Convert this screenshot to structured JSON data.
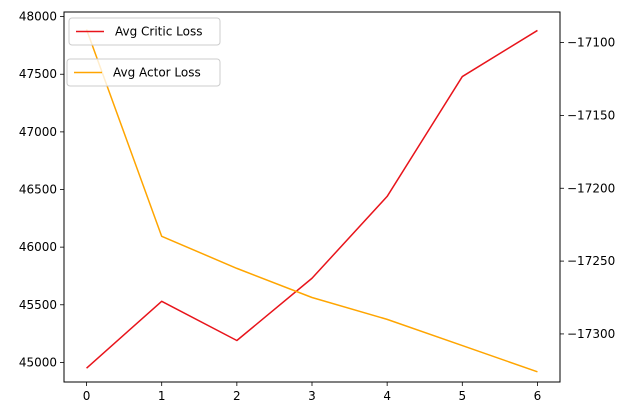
{
  "chart_data": {
    "type": "line",
    "title": "",
    "xlabel": "",
    "ylabel_left": "",
    "ylabel_right": "",
    "x": [
      0,
      1,
      2,
      3,
      4,
      5,
      6
    ],
    "x_ticks": [
      0,
      1,
      2,
      3,
      4,
      5,
      6
    ],
    "x_tick_labels": [
      "0",
      "1",
      "2",
      "3",
      "4",
      "5",
      "6"
    ],
    "xlim": [
      -0.3,
      6.3
    ],
    "left_axis": {
      "ylim": [
        44830,
        48040
      ],
      "ticks": [
        45000,
        45500,
        46000,
        46500,
        47000,
        47500,
        48000
      ],
      "tick_labels": [
        "45000",
        "45500",
        "46000",
        "46500",
        "47000",
        "47500",
        "48000"
      ]
    },
    "right_axis": {
      "ylim": [
        -17333,
        -17079
      ],
      "ticks": [
        -17100,
        -17150,
        -17200,
        -17250,
        -17300
      ],
      "tick_labels": [
        "−17100",
        "−17150",
        "−17200",
        "−17250",
        "−17300"
      ]
    },
    "series": [
      {
        "name": "Avg Critic Loss",
        "axis": "left",
        "color": "#e8141b",
        "values": [
          44950,
          45530,
          45190,
          45730,
          46440,
          47480,
          47880
        ]
      },
      {
        "name": "Avg Actor Loss",
        "axis": "right",
        "color": "#ffa500",
        "values": [
          -17091,
          -17233,
          -17255,
          -17275,
          -17290,
          -17308,
          -17326
        ]
      }
    ],
    "legends": [
      {
        "series": 0,
        "placement": "upper-left"
      },
      {
        "series": 1,
        "placement": "upper-left-below"
      }
    ],
    "grid": false
  }
}
